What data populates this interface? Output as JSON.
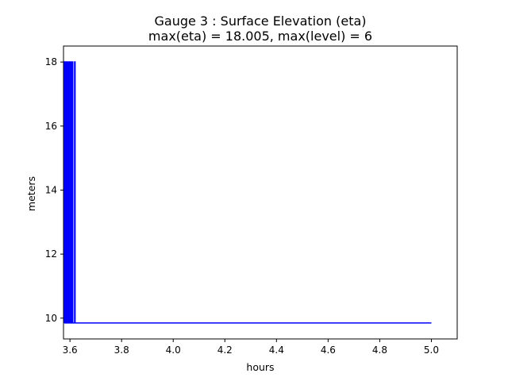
{
  "chart_data": {
    "type": "line",
    "title_line1": "Gauge 3 : Surface Elevation (eta)",
    "title_line2": "max(eta) =  18.005,    max(level) = 6",
    "xlabel": "hours",
    "ylabel": "meters",
    "xlim": [
      3.575,
      5.1
    ],
    "ylim": [
      9.35,
      18.5
    ],
    "xticks": [
      3.6,
      3.8,
      4.0,
      4.2,
      4.4,
      4.6,
      4.8,
      5.0
    ],
    "xtick_labels": [
      "3.6",
      "3.8",
      "4.0",
      "4.2",
      "4.4",
      "4.6",
      "4.8",
      "5.0"
    ],
    "yticks": [
      10,
      12,
      14,
      16,
      18
    ],
    "ytick_labels": [
      "10",
      "12",
      "14",
      "16",
      "18"
    ],
    "grid": false,
    "legend": "none",
    "series": [
      {
        "color": "#0000ff",
        "x": [
          3.578,
          3.578,
          3.58,
          3.58,
          3.582,
          3.582,
          3.584,
          3.584,
          3.586,
          3.586,
          3.588,
          3.588,
          3.59,
          3.59,
          3.592,
          3.592,
          3.594,
          3.594,
          3.596,
          3.596,
          3.598,
          3.598,
          3.6,
          3.6,
          3.602,
          3.602,
          3.604,
          3.604,
          3.606,
          3.606,
          3.608,
          3.608,
          3.61,
          3.61,
          3.611,
          3.611,
          3.615,
          3.615,
          3.618,
          3.618,
          3.62,
          3.62,
          4.0,
          4.5,
          5.0
        ],
        "y": [
          9.85,
          18.005,
          18.005,
          9.85,
          9.85,
          18.005,
          18.005,
          9.85,
          9.85,
          18.005,
          18.005,
          9.85,
          9.85,
          18.005,
          18.005,
          9.85,
          9.85,
          18.005,
          18.005,
          9.85,
          9.85,
          18.005,
          18.005,
          9.85,
          9.85,
          18.005,
          18.005,
          9.85,
          9.85,
          18.005,
          18.005,
          9.85,
          9.85,
          18.005,
          18.005,
          9.85,
          9.85,
          9.85,
          9.85,
          18.005,
          18.005,
          9.85,
          9.85,
          9.85,
          9.85
        ]
      }
    ]
  }
}
